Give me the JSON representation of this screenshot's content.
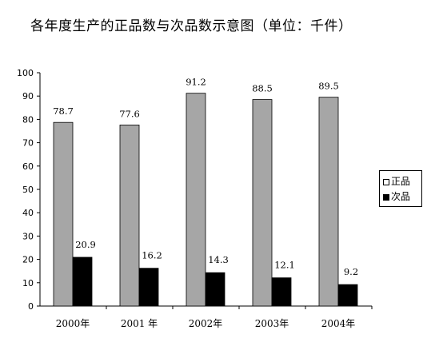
{
  "chart_data": {
    "type": "bar",
    "title": "各年度生产的正品数与次品数示意图（单位：千件）",
    "categories": [
      "2000年",
      "2001 年",
      "2002年",
      "2003年",
      "2004年"
    ],
    "series": [
      {
        "name": "正品",
        "values": [
          78.7,
          77.6,
          91.2,
          88.5,
          89.5
        ],
        "color": "#a6a6a6",
        "labels": [
          "78.7",
          "77.6",
          "91.2",
          "88.5",
          "89.5"
        ]
      },
      {
        "name": "次品",
        "values": [
          20.9,
          16.2,
          14.3,
          12.1,
          9.2
        ],
        "color": "#000000",
        "labels": [
          "20.9",
          "16.2",
          "14.3",
          "12.1",
          "9.2"
        ]
      }
    ],
    "ylim": [
      0,
      100
    ],
    "yticks": [
      "0",
      "10",
      "20",
      "30",
      "40",
      "50",
      "60",
      "70",
      "80",
      "90",
      "100"
    ],
    "legend_position": "right",
    "grid": false
  }
}
